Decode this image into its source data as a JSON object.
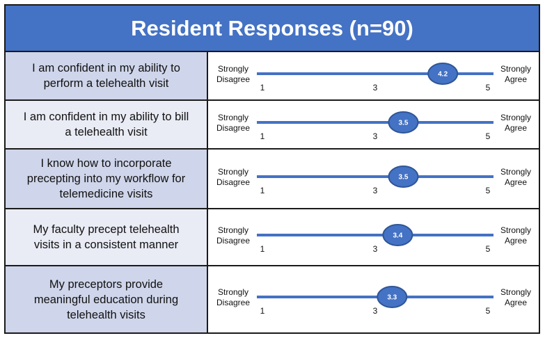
{
  "chart_data": {
    "type": "table",
    "title": "Resident Responses (n=90)",
    "scale": {
      "min": 1,
      "max": 5,
      "tick_labels": [
        "1",
        "3",
        "5"
      ],
      "left_label": [
        "Strongly",
        "Disagree"
      ],
      "right_label": [
        "Strongly",
        "Agree"
      ]
    },
    "items": [
      {
        "question": [
          "I am confident in my ability to",
          "perform a telehealth visit"
        ],
        "value": 4.2,
        "value_label": "4.2"
      },
      {
        "question": [
          "I am confident in my ability to bill",
          "a telehealth visit"
        ],
        "value": 3.5,
        "value_label": "3.5"
      },
      {
        "question": [
          "I know how to incorporate",
          "precepting into my workflow for",
          "telemedicine visits"
        ],
        "value": 3.5,
        "value_label": "3.5"
      },
      {
        "question": [
          "My faculty precept telehealth",
          "visits in a consistent manner"
        ],
        "value": 3.4,
        "value_label": "3.4"
      },
      {
        "question": [
          "My preceptors provide",
          "meaningful education during",
          "telehealth visits"
        ],
        "value": 3.3,
        "value_label": "3.3"
      }
    ]
  },
  "colors": {
    "header": "#4472c4",
    "line": "#4472c4",
    "marker_fill": "#4472c4",
    "marker_stroke": "#2f5597",
    "question_dark": "#cfd5ea",
    "question_light": "#e9ebf5"
  }
}
